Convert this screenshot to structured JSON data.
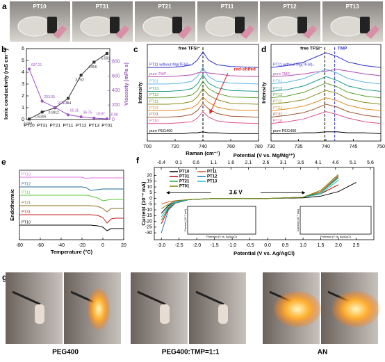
{
  "photos_a": {
    "letter": "a",
    "labels": [
      "PT10",
      "PT31",
      "PT21",
      "PT11",
      "PT12",
      "PT13"
    ]
  },
  "photos_g": {
    "letter": "g",
    "labels": [
      "PEG400",
      "PEG400:TMP=1:1",
      "AN"
    ]
  },
  "chart_data": [
    {
      "type": "dual",
      "letter": "b",
      "categories": [
        "PT10",
        "PT31",
        "PT21",
        "PT11",
        "PT12",
        "PT13",
        "PT01"
      ],
      "series": [
        {
          "name": "Ionic conductivity (mS cm⁻¹)",
          "color": "#333333",
          "values": [
            0.038,
            0.6306,
            0.9912,
            1.794,
            3.762,
            4.856,
            5.591
          ]
        },
        {
          "name": "Viscosity (mPa s)",
          "color": "#9b4fc4",
          "axis": "y2",
          "values": [
            697.21,
            253.05,
            167.14,
            65.11,
            36.75,
            18.97,
            10.08
          ]
        }
      ],
      "ylim": [
        0,
        6
      ],
      "yticks": [
        0,
        1,
        2,
        3,
        4,
        5,
        6
      ],
      "y2lim": [
        0,
        980
      ],
      "y2ticks": [
        0,
        200,
        400,
        600,
        800
      ]
    },
    {
      "type": "line",
      "letter": "c",
      "xlabel": "Raman (cm⁻¹)",
      "ylabel": "Intensity",
      "x": [
        700,
        715,
        725,
        732,
        736,
        740,
        744,
        750,
        760,
        780
      ],
      "xlim": [
        700,
        780
      ],
      "xticks": [
        700,
        720,
        740,
        760,
        780
      ],
      "ylim": [
        0,
        105
      ],
      "markers": [
        {
          "label": "free TFSI⁻",
          "x": 740,
          "color": "#000000"
        }
      ],
      "annotation": "red-shifed",
      "series": [
        {
          "name": "PT11 without Mg(TFSI)₂",
          "color": "#3030c8",
          "values": [
            80,
            80,
            81,
            83,
            88,
            97,
            88,
            83,
            81,
            80
          ]
        },
        {
          "name": "pure TMP",
          "color": "#b048b0",
          "values": [
            70,
            70,
            71,
            72,
            74,
            75,
            74,
            73,
            71,
            70
          ]
        },
        {
          "name": "PT01",
          "color": "#5ab4e0",
          "values": [
            62,
            62,
            63,
            65,
            70,
            80,
            70,
            65,
            63,
            62
          ]
        },
        {
          "name": "PT13",
          "color": "#1e9a8a",
          "values": [
            54,
            54,
            55,
            57,
            62,
            72,
            63,
            58,
            55,
            54
          ]
        },
        {
          "name": "PT12",
          "color": "#5aa02c",
          "values": [
            47,
            47,
            48,
            50,
            55,
            65,
            57,
            52,
            48,
            47
          ]
        },
        {
          "name": "PT11",
          "color": "#8a8a1e",
          "values": [
            40,
            40,
            41,
            43,
            48,
            57,
            50,
            45,
            41,
            40
          ]
        },
        {
          "name": "PT21",
          "color": "#e0881e",
          "values": [
            33,
            33,
            34,
            36,
            40,
            48,
            42,
            37,
            34,
            33
          ]
        },
        {
          "name": "PT31",
          "color": "#a0522d",
          "values": [
            26,
            26,
            27,
            29,
            33,
            41,
            35,
            30,
            27,
            26
          ]
        },
        {
          "name": "PT10",
          "color": "#e0508a",
          "values": [
            19,
            19,
            20,
            21,
            25,
            32,
            26,
            22,
            20,
            19
          ]
        },
        {
          "name": "pure PEG400",
          "color": "#000000",
          "values": [
            8,
            8,
            8,
            9,
            9,
            10,
            9,
            9,
            8,
            8
          ]
        }
      ]
    },
    {
      "type": "line",
      "letter": "d",
      "ylabel": "Intensity",
      "x": [
        730,
        733,
        736,
        738,
        740,
        742,
        744,
        747,
        750
      ],
      "xlim": [
        730,
        750
      ],
      "xticks": [
        730,
        735,
        740,
        745,
        750
      ],
      "ylim": [
        0,
        105
      ],
      "markers": [
        {
          "label": "free TFSI⁻",
          "x": 739.8,
          "color": "#000000"
        },
        {
          "label": "TMP",
          "x": 741.6,
          "color": "#3030c8"
        }
      ],
      "series": [
        {
          "name": "PT11 without Mg(TFSI)₂",
          "color": "#3030c8",
          "values": [
            80,
            82,
            86,
            91,
            96,
            92,
            86,
            82,
            80
          ]
        },
        {
          "name": "pure TMP",
          "color": "#b048b0",
          "values": [
            70,
            71,
            73,
            75,
            76,
            78,
            76,
            73,
            71
          ]
        },
        {
          "name": "PT01",
          "color": "#5ab4e0",
          "values": [
            62,
            64,
            68,
            73,
            78,
            74,
            68,
            64,
            62
          ]
        },
        {
          "name": "PT13",
          "color": "#1e9a8a",
          "values": [
            54,
            56,
            60,
            65,
            70,
            66,
            60,
            56,
            54
          ]
        },
        {
          "name": "PT12",
          "color": "#5aa02c",
          "values": [
            47,
            49,
            53,
            58,
            63,
            59,
            53,
            49,
            47
          ]
        },
        {
          "name": "PT11",
          "color": "#8a8a1e",
          "values": [
            40,
            42,
            45,
            50,
            55,
            52,
            46,
            42,
            40
          ]
        },
        {
          "name": "PT21",
          "color": "#e0881e",
          "values": [
            33,
            35,
            38,
            42,
            47,
            44,
            39,
            35,
            33
          ]
        },
        {
          "name": "PT31",
          "color": "#a0522d",
          "values": [
            26,
            28,
            31,
            35,
            40,
            37,
            32,
            28,
            26
          ]
        },
        {
          "name": "PT10",
          "color": "#e0508a",
          "values": [
            19,
            21,
            24,
            28,
            32,
            29,
            25,
            21,
            19
          ]
        },
        {
          "name": "pure PEG400",
          "color": "#000000",
          "values": [
            8,
            8,
            9,
            9,
            10,
            10,
            9,
            9,
            8
          ]
        }
      ]
    },
    {
      "type": "line",
      "letter": "e",
      "xlabel": "Temperature (°C)",
      "ylabel": "Endothermic",
      "x": [
        -80,
        -40,
        -20,
        -16,
        -12,
        -5,
        0,
        4,
        8,
        12,
        20
      ],
      "xlim": [
        -80,
        20
      ],
      "xticks": [
        -80,
        -60,
        -40,
        -20,
        0,
        20
      ],
      "ylim": [
        0,
        100
      ],
      "series": [
        {
          "name": "PT13",
          "color": "#e070e0",
          "values": [
            90,
            90,
            90,
            88,
            89,
            89,
            89,
            89,
            89,
            89,
            89
          ]
        },
        {
          "name": "PT12",
          "color": "#1e6a9a",
          "values": [
            76,
            76,
            76,
            75,
            71,
            72,
            73,
            73,
            73,
            73,
            73
          ]
        },
        {
          "name": "PT11",
          "color": "#5ac83c",
          "values": [
            64,
            64,
            64,
            64,
            63,
            60,
            56,
            57,
            58,
            58,
            58
          ]
        },
        {
          "name": "PT21",
          "color": "#8a6a1e",
          "values": [
            49,
            49,
            49,
            49,
            49,
            48,
            45,
            40,
            45,
            45,
            45
          ]
        },
        {
          "name": "PT31",
          "color": "#c01e1e",
          "values": [
            36,
            36,
            36,
            36,
            36,
            35,
            32,
            24,
            30,
            31,
            31
          ]
        },
        {
          "name": "PT10",
          "color": "#000000",
          "values": [
            21,
            21,
            21,
            21,
            21,
            20,
            18,
            13,
            16,
            16,
            16
          ]
        }
      ]
    },
    {
      "type": "cv",
      "letter": "f",
      "xlabel": "Potential (V vs. Ag/AgCl)",
      "x2label": "Potential (V vs. Mg/Mg²⁺)",
      "ylabel": "Current (10⁻³ mA)",
      "annotation": "3.6 V",
      "x": [
        -3.0,
        -2.8,
        -2.6,
        -2.2,
        -1.5,
        0,
        1.0,
        1.5,
        2.0,
        2.5
      ],
      "xlim": [
        -3.2,
        3.0
      ],
      "xticks": [
        {
          "value": -3,
          "label": "-3.0"
        },
        -2.5,
        {
          "value": -2,
          "label": "-2.0"
        },
        -1.5,
        {
          "value": -1,
          "label": "-1.0"
        },
        -0.5,
        {
          "value": 0,
          "label": "0.0"
        },
        0.5,
        {
          "value": 1,
          "label": "1.0"
        },
        1.5,
        {
          "value": 2,
          "label": "2.0"
        },
        2.5
      ],
      "x2lim": [
        -0.6,
        5.7
      ],
      "x2ticks": [
        -0.4,
        0.1,
        0.6,
        1.1,
        1.6,
        2.1,
        2.6,
        3.1,
        3.6,
        4.1,
        4.6,
        5.1,
        5.6
      ],
      "ylim": [
        -36,
        27
      ],
      "yticks": [
        20,
        15,
        10,
        5,
        0,
        -5,
        -10,
        -15,
        -20,
        -25,
        -30
      ],
      "insets": [
        {
          "xlabel": "Potential (V vs. Ag/AgCl)",
          "ylabel": "Current (10⁻³ mA)"
        },
        {
          "xlabel": "Potential (V vs. Ag/AgCl)",
          "ylabel": "Current (10⁻³ mA)"
        }
      ],
      "series": [
        {
          "name": "PT10",
          "color": "#000000",
          "values": [
            -13,
            -6,
            -3,
            -1,
            0,
            0,
            0.5,
            2,
            6,
            14
          ]
        },
        {
          "name": "PT11",
          "color": "#d9531e",
          "values": [
            -5,
            -3,
            -2,
            -1,
            0,
            0,
            1,
            6,
            20,
            null
          ]
        },
        {
          "name": "PT31",
          "color": "#c00000",
          "values": [
            -22,
            -9,
            -4,
            -1,
            0,
            0,
            1,
            4,
            12,
            null
          ]
        },
        {
          "name": "PT12",
          "color": "#1f77b4",
          "values": [
            -30,
            -10,
            -4,
            -1,
            0,
            0,
            1,
            5,
            19,
            null
          ]
        },
        {
          "name": "PT21",
          "color": "#2ca02c",
          "values": [
            -19,
            -8,
            -3,
            -1,
            0,
            0,
            1,
            5,
            18,
            null
          ]
        },
        {
          "name": "PT13",
          "color": "#17becf",
          "values": [
            -16,
            -7,
            -3,
            -1,
            0,
            0,
            1,
            4,
            16,
            null
          ]
        },
        {
          "name": "PT01",
          "color": "#808000",
          "values": [
            -9,
            -5,
            -2,
            -1,
            0,
            0,
            1,
            7,
            21,
            null
          ]
        }
      ]
    }
  ]
}
